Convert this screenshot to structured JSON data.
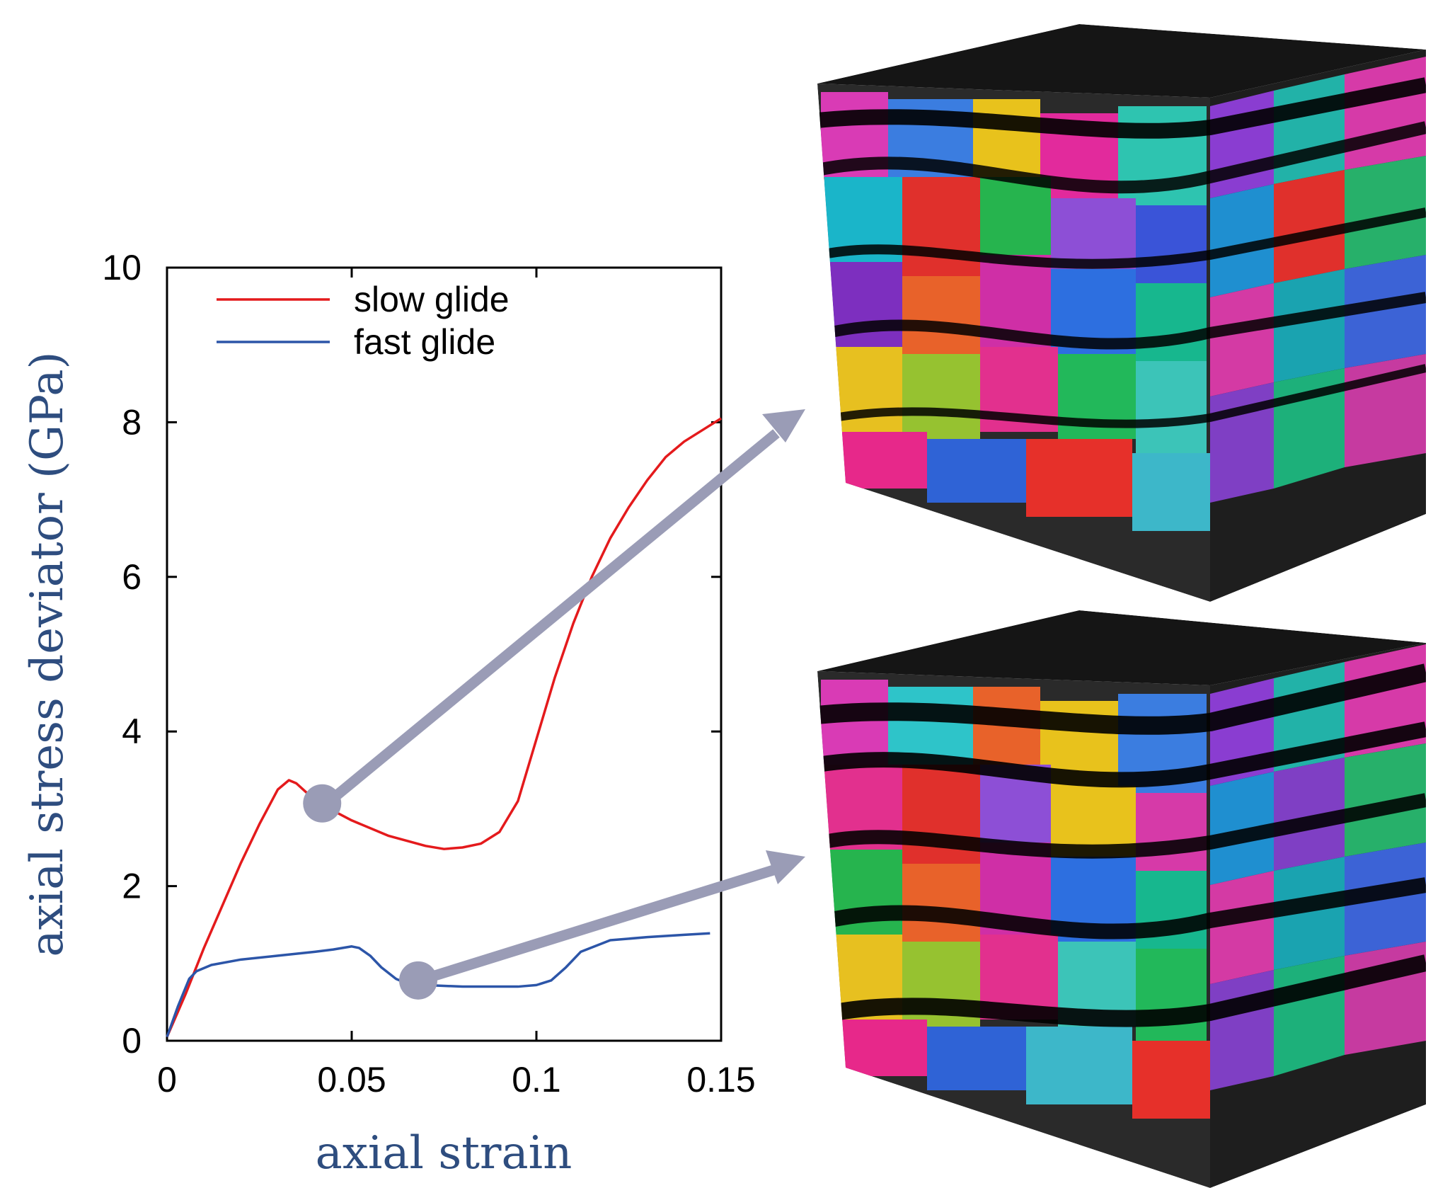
{
  "colors": {
    "slow": "#e41a1c",
    "fast": "#2c55a8",
    "axis_title": "#2e4d7f",
    "arrow": "#9a9cb6",
    "frame": "#000000"
  },
  "chart_data": {
    "type": "line",
    "title": "",
    "xlabel": "axial strain",
    "ylabel": "axial stress deviator (GPa)",
    "xlim": [
      0,
      0.15
    ],
    "ylim": [
      0,
      10
    ],
    "xticks": [
      0,
      0.05,
      0.1,
      0.15
    ],
    "yticks": [
      0,
      2,
      4,
      6,
      8,
      10
    ],
    "xtick_labels": [
      "0",
      "0.05",
      "0.1",
      "0.15"
    ],
    "ytick_labels": [
      "0",
      "2",
      "4",
      "6",
      "8",
      "10"
    ],
    "legend_position": "top-left",
    "series": [
      {
        "name": "slow glide",
        "color": "#e41a1c",
        "x": [
          0,
          0.005,
          0.01,
          0.015,
          0.02,
          0.025,
          0.03,
          0.033,
          0.035,
          0.038,
          0.042,
          0.05,
          0.06,
          0.07,
          0.075,
          0.08,
          0.085,
          0.09,
          0.095,
          0.1,
          0.105,
          0.11,
          0.115,
          0.12,
          0.125,
          0.13,
          0.135,
          0.14,
          0.145,
          0.15
        ],
        "values": [
          0.05,
          0.6,
          1.2,
          1.75,
          2.3,
          2.8,
          3.25,
          3.37,
          3.33,
          3.2,
          3.05,
          2.85,
          2.65,
          2.52,
          2.48,
          2.5,
          2.55,
          2.7,
          3.1,
          3.9,
          4.7,
          5.4,
          6.0,
          6.5,
          6.9,
          7.25,
          7.55,
          7.75,
          7.9,
          8.05
        ]
      },
      {
        "name": "fast glide",
        "color": "#2c55a8",
        "x": [
          0,
          0.003,
          0.006,
          0.008,
          0.012,
          0.02,
          0.03,
          0.04,
          0.045,
          0.05,
          0.052,
          0.055,
          0.058,
          0.062,
          0.065,
          0.07,
          0.08,
          0.09,
          0.095,
          0.1,
          0.104,
          0.108,
          0.112,
          0.12,
          0.13,
          0.14,
          0.147
        ],
        "values": [
          0.05,
          0.45,
          0.8,
          0.9,
          0.98,
          1.05,
          1.1,
          1.15,
          1.18,
          1.22,
          1.2,
          1.1,
          0.95,
          0.8,
          0.74,
          0.72,
          0.7,
          0.7,
          0.7,
          0.72,
          0.78,
          0.95,
          1.15,
          1.3,
          1.34,
          1.37,
          1.39
        ]
      }
    ],
    "annotations": [
      {
        "label": "slow glide microstructure",
        "series": "slow glide",
        "x": 0.042,
        "y": 3.07
      },
      {
        "label": "fast glide microstructure",
        "series": "fast glide",
        "x": 0.068,
        "y": 0.78
      }
    ]
  }
}
